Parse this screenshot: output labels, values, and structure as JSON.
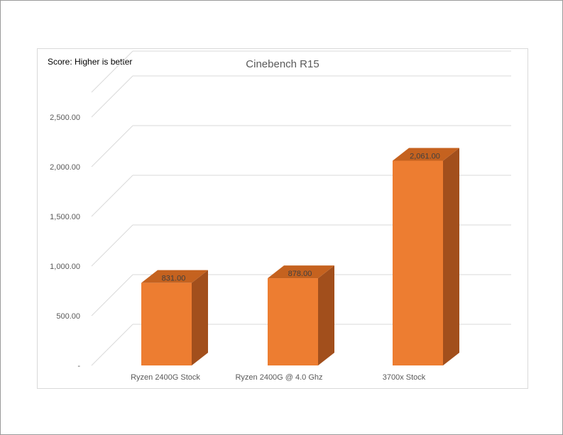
{
  "chart_data": {
    "type": "bar",
    "title": "Cinebench R15",
    "note": "Score: Higher is better",
    "categories": [
      "Ryzen 2400G Stock",
      "Ryzen 2400G @ 4.0 Ghz",
      "3700x Stock"
    ],
    "series": [
      {
        "values": [
          831,
          878,
          2061
        ],
        "data_labels": [
          "831.00",
          "878.00",
          "2,061.00"
        ]
      }
    ],
    "y_ticks": [
      0,
      500,
      1000,
      1500,
      2000,
      2500
    ],
    "y_tick_labels": [
      "-",
      "500.00",
      "1,000.00",
      "1,500.00",
      "2,000.00",
      "2,500.00"
    ],
    "ylim": [
      0,
      2750
    ],
    "grid": true,
    "legend": "none",
    "style": "3d-column",
    "colors": {
      "front": "#ED7D31",
      "top": "#C5621F",
      "side": "#A24F1C",
      "grid": "#D9D9D9",
      "text": "#595959"
    }
  }
}
